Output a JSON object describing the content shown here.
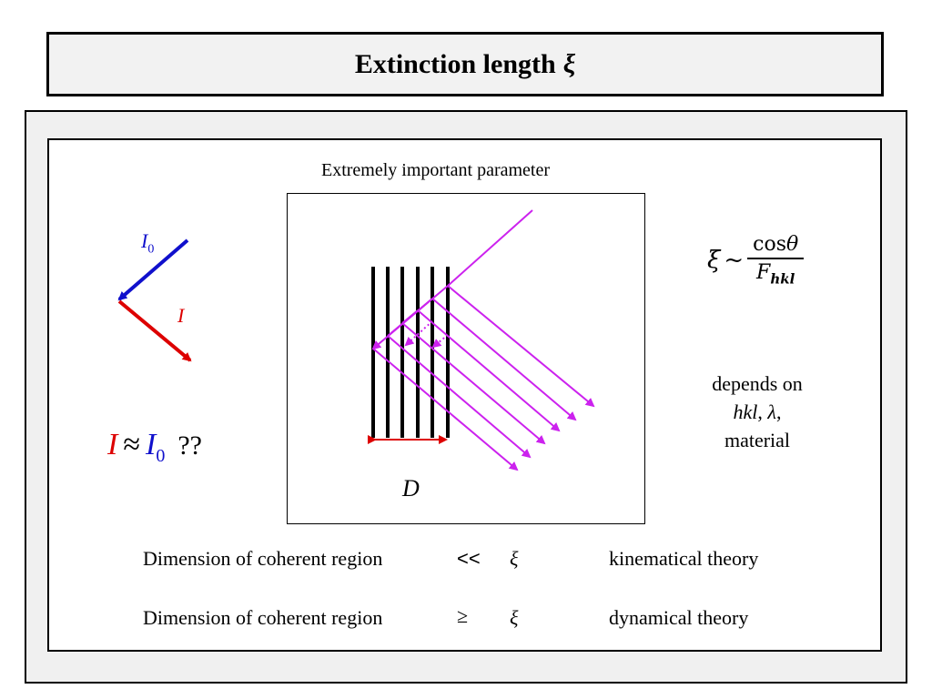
{
  "title": {
    "text": "Extinction length",
    "symbol": "ξ"
  },
  "subtitle": "Extremely important parameter",
  "left": {
    "incident_label": "I",
    "incident_sub": "0",
    "diffracted_label": "I",
    "approx": {
      "lhs": "I",
      "op": "≈",
      "rhs": "I",
      "rhs_sub": "0",
      "question": "??"
    },
    "colors": {
      "incident": "#1010cc",
      "diffracted": "#dd0000"
    }
  },
  "diagram": {
    "thickness_label": "D",
    "plane_count": 6,
    "colors": {
      "planes": "#000000",
      "beams": "#cc22ee",
      "thickness": "#dd0000"
    }
  },
  "formula": {
    "lhs": "ξ",
    "relation": "~",
    "numerator": "cos",
    "numerator_var": "θ",
    "denominator": "F",
    "denominator_sub": "hkl"
  },
  "depends": {
    "line1": "depends on",
    "hkl": "hkl",
    "sep": ", ",
    "lambda": "λ",
    "comma": ",",
    "line3": "material"
  },
  "rows": [
    {
      "label": "Dimension of coherent region",
      "relation": "<<",
      "symbol": "ξ",
      "theory": "kinematical theory"
    },
    {
      "label": "Dimension of coherent region",
      "relation": "≥",
      "symbol": "ξ",
      "theory": "dynamical theory"
    }
  ]
}
